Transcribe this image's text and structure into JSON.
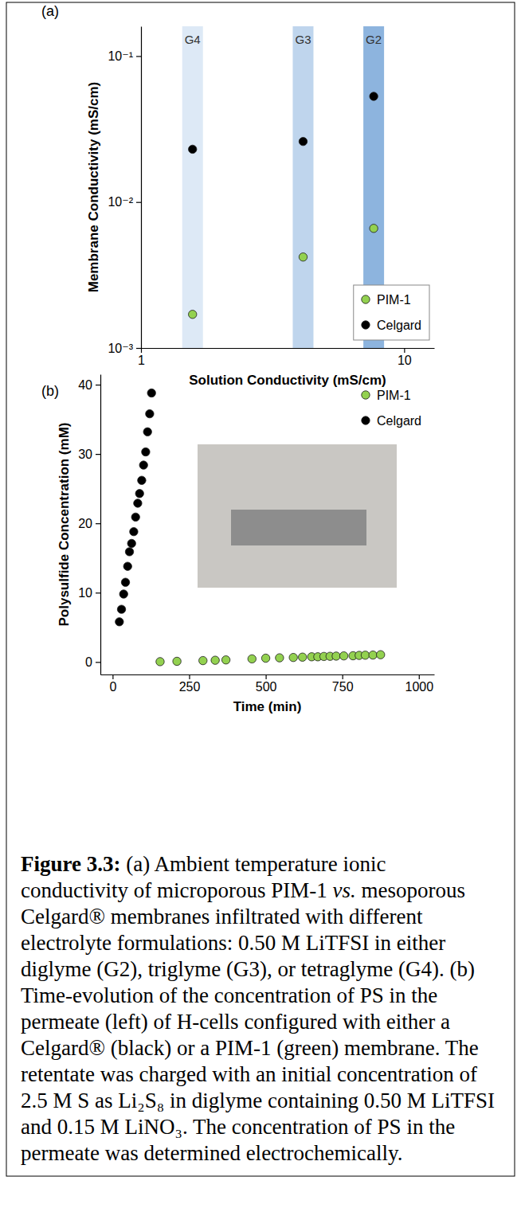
{
  "chart_data": [
    {
      "type": "scatter",
      "title": "(a)",
      "x_label": "Solution Conductivity (mS/cm)",
      "y_label": "Membrane Conductivity (mS/cm)",
      "log": true,
      "grid": false,
      "legend": "bottom-right",
      "xlim": [
        1,
        13
      ],
      "xticks": [
        1,
        10
      ],
      "ylim": [
        0.001,
        0.16
      ],
      "yticks": [
        {
          "value": 0.001,
          "label": "10⁻³"
        },
        {
          "value": 0.01,
          "label": "10⁻²"
        },
        {
          "value": 0.1,
          "label": "10⁻¹"
        }
      ],
      "x": [
        1.57,
        4.13,
        7.66
      ],
      "annotations": [
        {
          "text": "G4",
          "x": 1.57,
          "color": "#dde9f6"
        },
        {
          "text": "G3",
          "x": 4.13,
          "color": "#bfd5ed"
        },
        {
          "text": "G2",
          "x": 7.66,
          "color": "#8db4de"
        }
      ],
      "series": [
        {
          "name": "PIM-1",
          "color": "#93d150",
          "marker": "circle",
          "values": [
            0.0017,
            0.0042,
            0.0066
          ]
        },
        {
          "name": "Celgard",
          "color": "#000000",
          "marker": "circle",
          "values": [
            0.023,
            0.026,
            0.053
          ]
        }
      ]
    },
    {
      "type": "scatter",
      "title": "(b)",
      "x_label": "Time (min)",
      "y_label": "Polysulfide Concentration (mM)",
      "grid": false,
      "legend": "top-right",
      "xlim": [
        -40,
        1050
      ],
      "xticks": [
        0,
        250,
        500,
        750,
        1000
      ],
      "ylim": [
        -1.8,
        41.5
      ],
      "yticks": [
        0,
        10,
        20,
        30,
        40
      ],
      "series": [
        {
          "name": "PIM-1",
          "color": "#93d150",
          "marker": "circle",
          "x": [
            155,
            210,
            295,
            335,
            370,
            455,
            500,
            545,
            590,
            620,
            650,
            670,
            690,
            710,
            730,
            755,
            785,
            805,
            825,
            850,
            875
          ],
          "values": [
            0.05,
            0.1,
            0.2,
            0.25,
            0.3,
            0.45,
            0.55,
            0.6,
            0.65,
            0.7,
            0.75,
            0.75,
            0.8,
            0.82,
            0.85,
            0.88,
            0.9,
            0.95,
            0.98,
            1.0,
            1.05
          ]
        },
        {
          "name": "Celgard",
          "color": "#000000",
          "marker": "circle",
          "x": [
            22,
            29,
            36,
            42,
            49,
            55,
            62,
            69,
            75,
            82,
            88,
            95,
            101,
            108,
            114,
            121,
            127
          ],
          "values": [
            5.8,
            7.6,
            9.8,
            11.5,
            13.8,
            15.9,
            17.1,
            18.8,
            20.9,
            22.9,
            24.3,
            26.2,
            28.4,
            30.3,
            33.2,
            35.8,
            38.8
          ]
        }
      ]
    }
  ],
  "caption": {
    "label": "Figure 3.3:",
    "body": [
      "(a) Ambient temperature ionic conductivity of microporous PIM-1",
      "vs.",
      "mesoporous Celgard® membranes infiltrated with different electrolyte formulations: 0.50 M LiTFSI in either diglyme (G2), triglyme (G3), or tetraglyme (G4). (b) Time-evolution of the concentration of PS in the permeate (left) of H-cells configured with either a Celgard® (black) or a PIM-1 (green) membrane. The retentate was charged with an initial concentration of 2.5 M S as Li₂S₈ in diglyme containing 0.50 M LiTFSI and 0.15 M LiNO₃. The concentration of PS in the permeate was determined electrochemically."
    ]
  }
}
